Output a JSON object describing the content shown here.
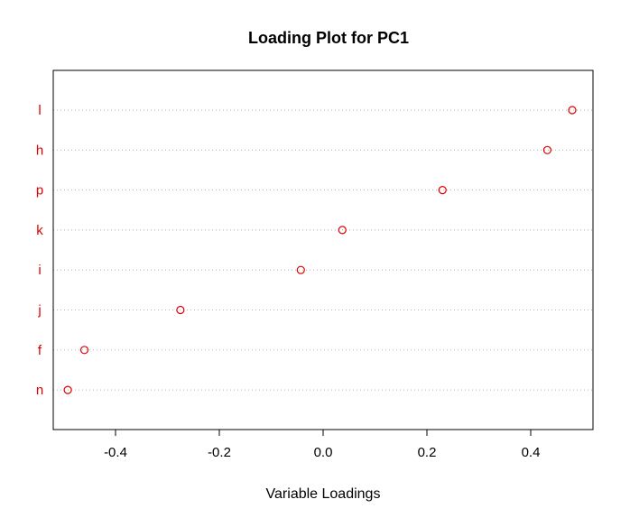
{
  "chart_data": {
    "type": "scatter",
    "title": "Loading Plot for PC1",
    "xlabel": "Variable Loadings",
    "ylabel": "",
    "xlim": [
      -0.52,
      0.52
    ],
    "xticks": [
      -0.4,
      -0.2,
      0.0,
      0.2,
      0.4
    ],
    "xtick_labels": [
      "-0.4",
      "-0.2",
      "0.0",
      "0.2",
      "0.4"
    ],
    "categories": [
      "l",
      "h",
      "p",
      "k",
      "i",
      "j",
      "f",
      "n"
    ],
    "values": [
      0.48,
      0.432,
      0.23,
      0.037,
      -0.043,
      -0.275,
      -0.46,
      -0.492
    ],
    "point_color": "#dd0000",
    "label_color": "#dd0000",
    "grid": "dotted horizontal lines per category",
    "marker": "open-circle"
  }
}
